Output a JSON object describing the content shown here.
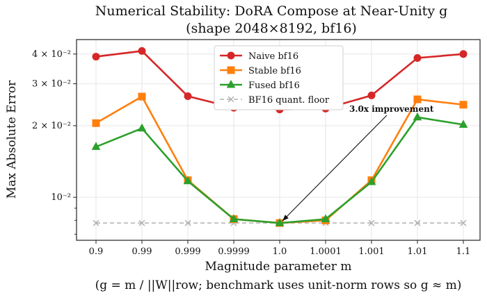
{
  "chart_data": {
    "type": "line",
    "title_line1": "Numerical Stability: DoRA Compose at Near-Unity g",
    "title_line2": "(shape 2048×8192, bf16)",
    "xlabel": "Magnitude parameter m",
    "xlabel_caption": "(g = m / ||W||row; benchmark uses unit-norm rows so g ≈ m)",
    "ylabel": "Max Absolute Error",
    "y_scale": "log",
    "ylim": [
      0.0066,
      0.046
    ],
    "y_ticks": [
      {
        "value": 0.01,
        "label": "10⁻²"
      },
      {
        "value": 0.02,
        "label": "2 × 10⁻²"
      },
      {
        "value": 0.03,
        "label": "3 × 10⁻²"
      },
      {
        "value": 0.04,
        "label": "4 × 10⁻²"
      }
    ],
    "categories": [
      "0.9",
      "0.99",
      "0.999",
      "0.9999",
      "1.0",
      "1.0001",
      "1.001",
      "1.01",
      "1.1"
    ],
    "grid": true,
    "legend_position": "top-center",
    "series": [
      {
        "name": "Naive bf16",
        "color": "#d62728",
        "marker": "circle",
        "dashed": false,
        "values": [
          0.039,
          0.0412,
          0.0266,
          0.0238,
          0.0234,
          0.0236,
          0.0268,
          0.0385,
          0.04
        ]
      },
      {
        "name": "Stable bf16",
        "color": "#ff7f0e",
        "marker": "square",
        "dashed": false,
        "values": [
          0.0205,
          0.0265,
          0.0118,
          0.0081,
          0.0078,
          0.008,
          0.0118,
          0.0258,
          0.0245
        ]
      },
      {
        "name": "Fused bf16",
        "color": "#2ca02c",
        "marker": "triangle",
        "dashed": false,
        "values": [
          0.0163,
          0.0195,
          0.0117,
          0.0081,
          0.0078,
          0.0081,
          0.0116,
          0.0217,
          0.0202
        ]
      },
      {
        "name": "BF16 quant. floor",
        "color": "#b0b0b0",
        "marker": "x",
        "dashed": true,
        "values": [
          0.0078,
          0.0078,
          0.0078,
          0.0078,
          0.0078,
          0.0078,
          0.0078,
          0.0078,
          0.0078
        ]
      }
    ],
    "annotation": {
      "text": "3.0x improvement",
      "points_to_category": "1.0",
      "points_to_value": 0.0078
    }
  }
}
